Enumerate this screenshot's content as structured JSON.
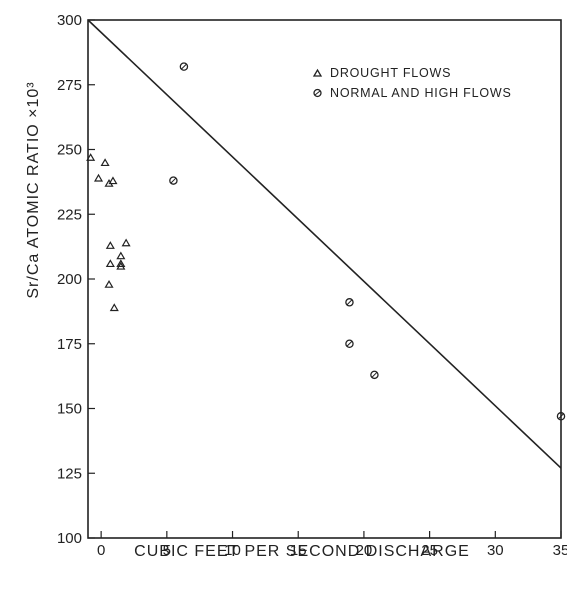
{
  "chart_data": {
    "type": "scatter",
    "title": "",
    "xlabel": "CUBIC FEET PER SECOND DISCHARGE",
    "ylabel": "Sr/Ca ATOMIC RATIO ×10³",
    "xlim": [
      -1,
      35
    ],
    "ylim": [
      100,
      300
    ],
    "x_ticks": [
      0,
      5,
      10,
      15,
      20,
      25,
      30,
      35
    ],
    "y_ticks": [
      100,
      125,
      150,
      175,
      200,
      225,
      250,
      275,
      300
    ],
    "grid": false,
    "legend_position": "top-right",
    "series": [
      {
        "name": "DROUGHT FLOWS",
        "marker": "triangle",
        "points": [
          [
            -0.8,
            247
          ],
          [
            0.3,
            245
          ],
          [
            -0.2,
            239
          ],
          [
            0.6,
            237
          ],
          [
            0.9,
            238
          ],
          [
            0.7,
            213
          ],
          [
            0.7,
            206
          ],
          [
            0.6,
            198
          ],
          [
            1.0,
            189
          ],
          [
            1.5,
            209
          ],
          [
            1.5,
            206
          ],
          [
            1.5,
            205
          ],
          [
            1.9,
            214
          ]
        ]
      },
      {
        "name": "NORMAL AND HIGH FLOWS",
        "marker": "circle",
        "points": [
          [
            6.3,
            282
          ],
          [
            5.5,
            238
          ],
          [
            18.9,
            191
          ],
          [
            18.9,
            175
          ],
          [
            20.8,
            163
          ],
          [
            35.0,
            147
          ]
        ]
      }
    ],
    "line": {
      "x": [
        -1,
        35
      ],
      "y": [
        300,
        127
      ]
    }
  }
}
